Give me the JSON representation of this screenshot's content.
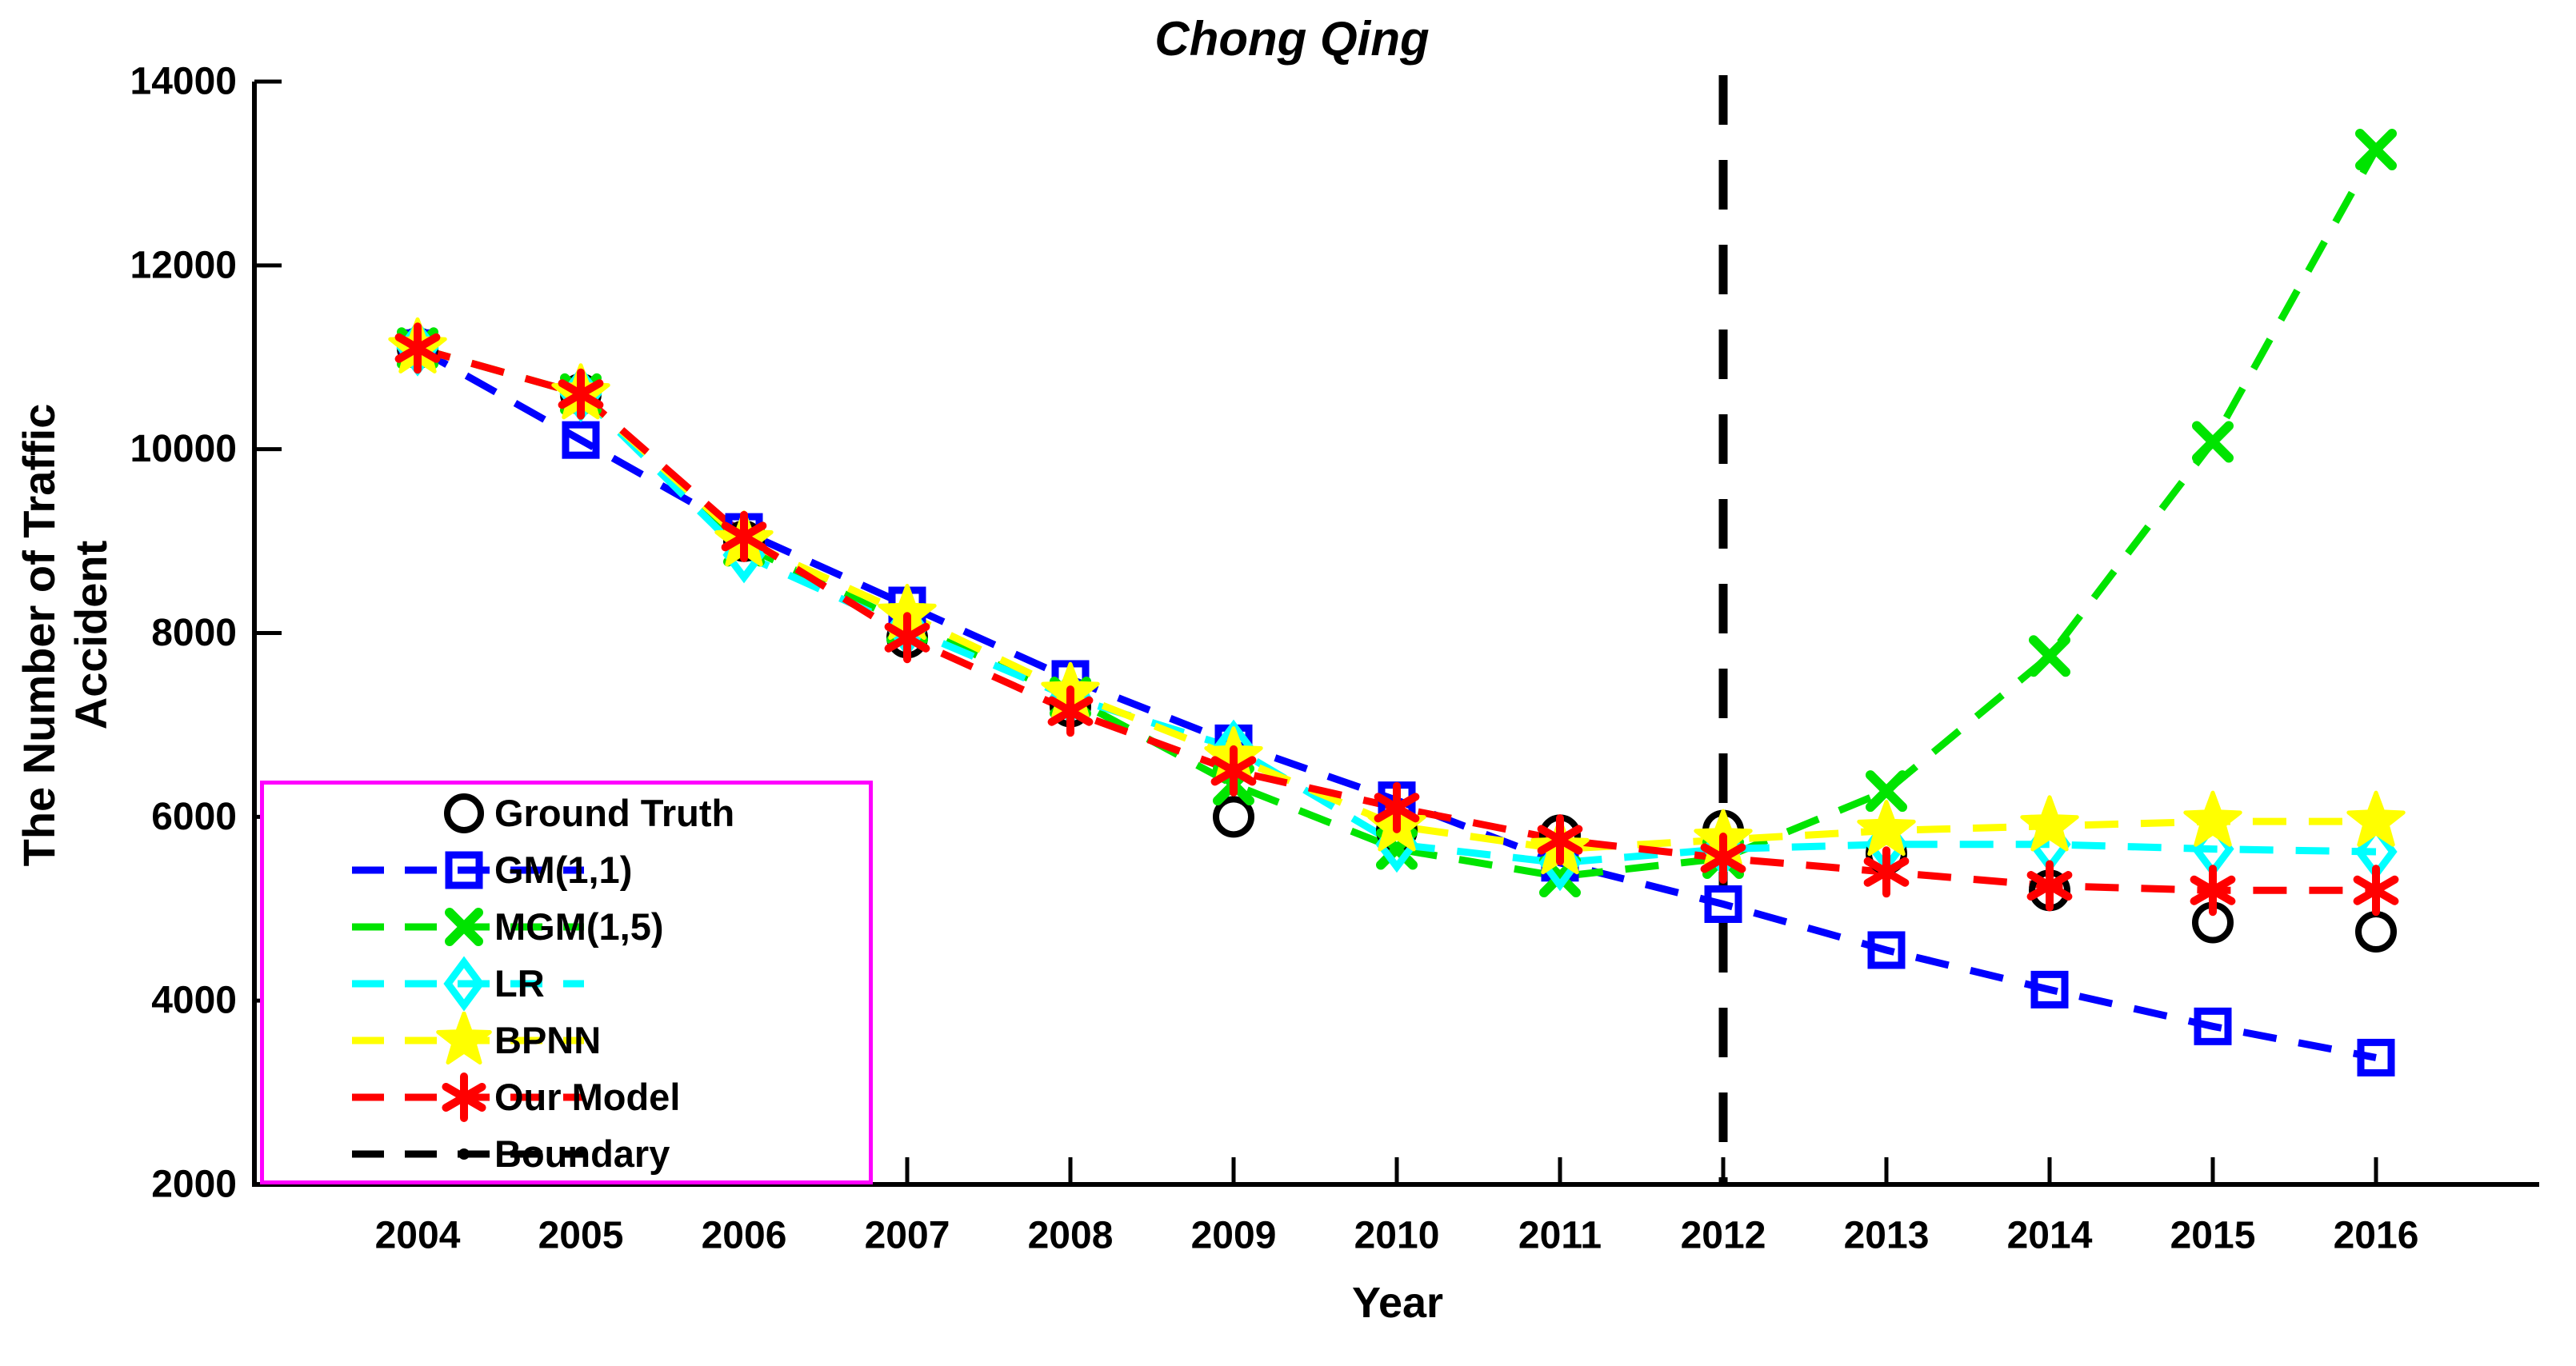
{
  "title": "Chong Qing",
  "axes": {
    "xlabel": "Year",
    "ylabel": "The Number of Traffic Accident"
  },
  "colors": {
    "ground_truth": "#000000",
    "gm11": "#0000ff",
    "mgm15": "#00e400",
    "lr": "#00ffff",
    "bpnn": "#ffff00",
    "our_model": "#ff0000",
    "boundary": "#000000",
    "legend_border": "#ff00ff",
    "axis": "#000000"
  },
  "legend": [
    {
      "label": "Ground Truth",
      "marker": "circle",
      "color": "#000000",
      "line": "none"
    },
    {
      "label": "GM(1,1)",
      "marker": "square",
      "color": "#0000ff",
      "line": "dashed"
    },
    {
      "label": "MGM(1,5)",
      "marker": "x",
      "color": "#00e400",
      "line": "dashed"
    },
    {
      "label": "LR",
      "marker": "diamond",
      "color": "#00ffff",
      "line": "dashed"
    },
    {
      "label": "BPNN",
      "marker": "star",
      "color": "#ffff00",
      "line": "dashed"
    },
    {
      "label": "Our Model",
      "marker": "asterisk",
      "color": "#ff0000",
      "line": "dashed"
    },
    {
      "label": "Boundary",
      "marker": "dot",
      "color": "#000000",
      "line": "dashed"
    }
  ],
  "chart_data": {
    "type": "line",
    "title": "Chong Qing",
    "xlabel": "Year",
    "ylabel": "The Number of Traffic Accident",
    "x": [
      2004,
      2005,
      2006,
      2007,
      2008,
      2009,
      2010,
      2011,
      2012,
      2013,
      2014,
      2015,
      2016
    ],
    "x_ticks": [
      "2004",
      "2005",
      "2006",
      "2007",
      "2008",
      "2009",
      "2010",
      "2011",
      "2012",
      "2013",
      "2014",
      "2015",
      "2016"
    ],
    "y_ticks": [
      "2000",
      "4000",
      "6000",
      "8000",
      "10000",
      "12000",
      "14000"
    ],
    "xlim": [
      2003,
      2017
    ],
    "ylim": [
      2000,
      14000
    ],
    "grid": false,
    "legend_position": "lower-left",
    "boundary_x": 2012,
    "series": [
      {
        "name": "Ground Truth",
        "marker": "circle",
        "line": "none",
        "color": "#000000",
        "values": [
          11100,
          10600,
          9000,
          7950,
          7200,
          6000,
          5850,
          5800,
          5850,
          5600,
          5200,
          4850,
          4750
        ]
      },
      {
        "name": "GM(1,1)",
        "marker": "square",
        "line": "dashed",
        "color": "#0000ff",
        "values": [
          11100,
          10100,
          9100,
          8300,
          7500,
          6800,
          6180,
          5500,
          5050,
          4550,
          4120,
          3720,
          3380
        ]
      },
      {
        "name": "MGM(1,5)",
        "marker": "x",
        "line": "dashed",
        "color": "#00e400",
        "values": [
          11100,
          10600,
          8950,
          8100,
          7300,
          6350,
          5650,
          5350,
          5550,
          6280,
          7750,
          10080,
          13260
        ]
      },
      {
        "name": "LR",
        "marker": "diamond",
        "line": "dashed",
        "color": "#00ffff",
        "values": [
          11100,
          10600,
          8850,
          8050,
          7300,
          6750,
          5700,
          5500,
          5650,
          5700,
          5700,
          5650,
          5620
        ]
      },
      {
        "name": "BPNN",
        "marker": "star",
        "line": "dashed",
        "color": "#ffff00",
        "values": [
          11100,
          10600,
          9000,
          8200,
          7350,
          6650,
          5900,
          5650,
          5750,
          5850,
          5900,
          5950,
          5950
        ]
      },
      {
        "name": "Our Model",
        "marker": "asterisk",
        "line": "dashed",
        "color": "#ff0000",
        "values": [
          11100,
          10600,
          9050,
          7950,
          7150,
          6500,
          6100,
          5750,
          5550,
          5400,
          5250,
          5200,
          5200
        ]
      }
    ]
  }
}
